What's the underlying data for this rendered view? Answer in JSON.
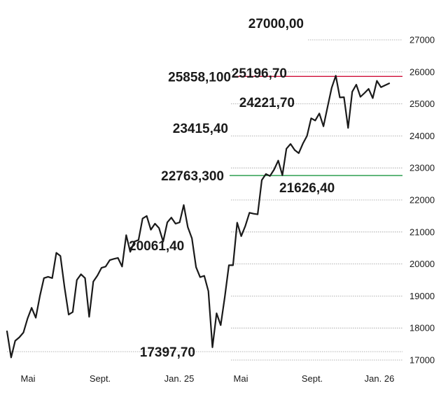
{
  "chart_data": {
    "type": "line",
    "title": "",
    "xlabel": "",
    "ylabel": "",
    "ylim": [
      16600,
      27400
    ],
    "grid": true,
    "y_axis_position": "right",
    "yticks": [
      "17000",
      "18000",
      "19000",
      "20000",
      "21000",
      "22000",
      "23000",
      "24000",
      "25000",
      "26000",
      "27000"
    ],
    "xticks": [
      "Mai",
      "Sept.",
      "Jan. 25",
      "Mai",
      "Sept.",
      "Jan. 26"
    ],
    "reference_lines": [
      {
        "label": "25858,100",
        "value": 25858.1,
        "color": "#d0103a"
      },
      {
        "label": "22763,300",
        "value": 22763.3,
        "color": "#1a9641"
      }
    ],
    "annotations": [
      {
        "text": "27000,00",
        "value": 27000
      },
      {
        "text": "25196,70",
        "value": 25196.7
      },
      {
        "text": "24221,70",
        "value": 24221.7
      },
      {
        "text": "23415,40",
        "value": 23415.4
      },
      {
        "text": "21626,40",
        "value": 21626.4
      },
      {
        "text": "20061,40",
        "value": 20061.4
      },
      {
        "text": "17397,70",
        "value": 17397.7
      }
    ],
    "series": [
      {
        "color": "#1a1a1a",
        "values": [
          17900,
          17080,
          17600,
          17710,
          17860,
          18300,
          18630,
          18320,
          19000,
          19560,
          19600,
          19560,
          20350,
          20250,
          19270,
          18420,
          18500,
          19500,
          19680,
          19560,
          18350,
          19450,
          19640,
          19880,
          19920,
          20120,
          20160,
          20190,
          19920,
          20900,
          20380,
          20700,
          20750,
          21420,
          21500,
          21070,
          21260,
          21120,
          20700,
          21300,
          21450,
          21260,
          21300,
          21840,
          21150,
          20800,
          19900,
          19590,
          19630,
          19150,
          17397.7,
          18460,
          18090,
          18980,
          19960,
          19960,
          21290,
          20870,
          21190,
          21600,
          21570,
          21550,
          22620,
          22810,
          22750,
          22950,
          23230,
          22770,
          23600,
          23750,
          23560,
          23460,
          23760,
          24000,
          24550,
          24480,
          24700,
          24300,
          24900,
          25500,
          25880,
          25200,
          25210,
          24250,
          25380,
          25600,
          25220,
          25340,
          25470,
          25180,
          25720,
          25520,
          25580,
          25640
        ]
      }
    ]
  }
}
